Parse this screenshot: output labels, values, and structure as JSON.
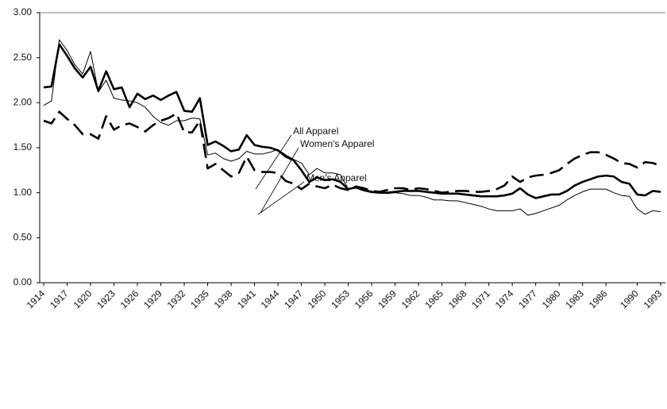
{
  "chart_data": {
    "type": "line",
    "x": [
      1914,
      1915,
      1916,
      1917,
      1918,
      1919,
      1920,
      1921,
      1922,
      1923,
      1924,
      1925,
      1926,
      1927,
      1928,
      1929,
      1930,
      1931,
      1932,
      1933,
      1934,
      1935,
      1936,
      1937,
      1938,
      1939,
      1940,
      1941,
      1942,
      1943,
      1944,
      1945,
      1946,
      1947,
      1948,
      1949,
      1950,
      1951,
      1952,
      1953,
      1954,
      1955,
      1956,
      1957,
      1958,
      1959,
      1960,
      1961,
      1962,
      1963,
      1964,
      1965,
      1966,
      1967,
      1968,
      1969,
      1970,
      1971,
      1972,
      1973,
      1974,
      1975,
      1976,
      1977,
      1978,
      1979,
      1980,
      1981,
      1982,
      1983,
      1984,
      1985,
      1986,
      1987,
      1988,
      1989,
      1990,
      1991,
      1992,
      1993
    ],
    "series": [
      {
        "name": "All Apparel",
        "color": "#000000",
        "style": "thick",
        "values": [
          2.17,
          2.18,
          2.65,
          2.52,
          2.38,
          2.28,
          2.4,
          2.13,
          2.35,
          2.15,
          2.17,
          1.95,
          2.1,
          2.04,
          2.08,
          2.03,
          2.08,
          2.12,
          1.91,
          1.9,
          2.05,
          1.53,
          1.57,
          1.52,
          1.46,
          1.48,
          1.64,
          1.53,
          1.51,
          1.5,
          1.47,
          1.4,
          1.36,
          1.25,
          1.12,
          1.17,
          1.14,
          1.15,
          1.12,
          1.04,
          1.06,
          1.03,
          1.01,
          1.0,
          1.0,
          1.01,
          1.02,
          1.02,
          1.02,
          1.01,
          1.0,
          0.99,
          0.99,
          0.99,
          0.98,
          0.97,
          0.96,
          0.96,
          0.96,
          0.97,
          0.99,
          1.05,
          0.98,
          0.94,
          0.96,
          0.98,
          0.98,
          1.02,
          1.08,
          1.12,
          1.15,
          1.18,
          1.19,
          1.18,
          1.12,
          1.1,
          0.98,
          0.97,
          1.02,
          1.01
        ]
      },
      {
        "name": "Women's Apparel",
        "color": "#000000",
        "style": "thin",
        "values": [
          1.97,
          2.02,
          2.7,
          2.58,
          2.42,
          2.32,
          2.57,
          2.12,
          2.25,
          2.05,
          2.03,
          2.02,
          2.0,
          1.95,
          1.85,
          1.78,
          1.75,
          1.8,
          1.8,
          1.83,
          1.82,
          1.42,
          1.44,
          1.38,
          1.35,
          1.38,
          1.46,
          1.43,
          1.43,
          1.45,
          1.48,
          1.42,
          1.37,
          1.33,
          1.2,
          1.27,
          1.22,
          1.22,
          1.2,
          1.04,
          1.05,
          1.02,
          1.0,
          1.0,
          0.99,
          1.0,
          0.99,
          0.97,
          0.97,
          0.95,
          0.92,
          0.92,
          0.91,
          0.91,
          0.89,
          0.87,
          0.85,
          0.82,
          0.8,
          0.8,
          0.8,
          0.82,
          0.75,
          0.77,
          0.8,
          0.83,
          0.86,
          0.92,
          0.97,
          1.01,
          1.04,
          1.04,
          1.04,
          1.0,
          0.97,
          0.96,
          0.82,
          0.76,
          0.8,
          0.79
        ]
      },
      {
        "name": "Men's Apparel",
        "color": "#000000",
        "style": "dashed",
        "values": [
          1.8,
          1.77,
          1.9,
          1.82,
          1.75,
          1.65,
          1.65,
          1.6,
          1.85,
          1.7,
          1.75,
          1.77,
          1.73,
          1.68,
          1.75,
          1.8,
          1.83,
          1.88,
          1.67,
          1.67,
          1.8,
          1.27,
          1.32,
          1.25,
          1.18,
          1.22,
          1.4,
          1.25,
          1.23,
          1.23,
          1.22,
          1.13,
          1.1,
          1.04,
          1.1,
          1.07,
          1.05,
          1.09,
          1.05,
          1.03,
          1.07,
          1.05,
          1.02,
          1.01,
          1.03,
          1.05,
          1.05,
          1.03,
          1.05,
          1.04,
          1.02,
          1.0,
          1.01,
          1.02,
          1.02,
          1.01,
          1.01,
          1.02,
          1.04,
          1.08,
          1.18,
          1.12,
          1.17,
          1.19,
          1.2,
          1.22,
          1.25,
          1.32,
          1.38,
          1.42,
          1.45,
          1.45,
          1.42,
          1.38,
          1.33,
          1.32,
          1.28,
          1.34,
          1.33,
          1.3
        ]
      }
    ],
    "xlim": [
      1914,
      1993
    ],
    "xticks": [
      1914,
      1917,
      1920,
      1923,
      1926,
      1929,
      1932,
      1935,
      1938,
      1941,
      1944,
      1947,
      1950,
      1953,
      1956,
      1959,
      1962,
      1965,
      1968,
      1971,
      1974,
      1977,
      1980,
      1983,
      1986,
      1990,
      1993
    ],
    "ylim": [
      0,
      3
    ],
    "yticks": [
      {
        "value": 0,
        "label": "0.00"
      },
      {
        "value": 0.5,
        "label": "0.50"
      },
      {
        "value": 1,
        "label": "1.00"
      },
      {
        "value": 1.5,
        "label": "1.50"
      },
      {
        "value": 2,
        "label": "2.00"
      },
      {
        "value": 2.5,
        "label": "2.50"
      },
      {
        "value": 3,
        "label": "3.00"
      }
    ]
  }
}
